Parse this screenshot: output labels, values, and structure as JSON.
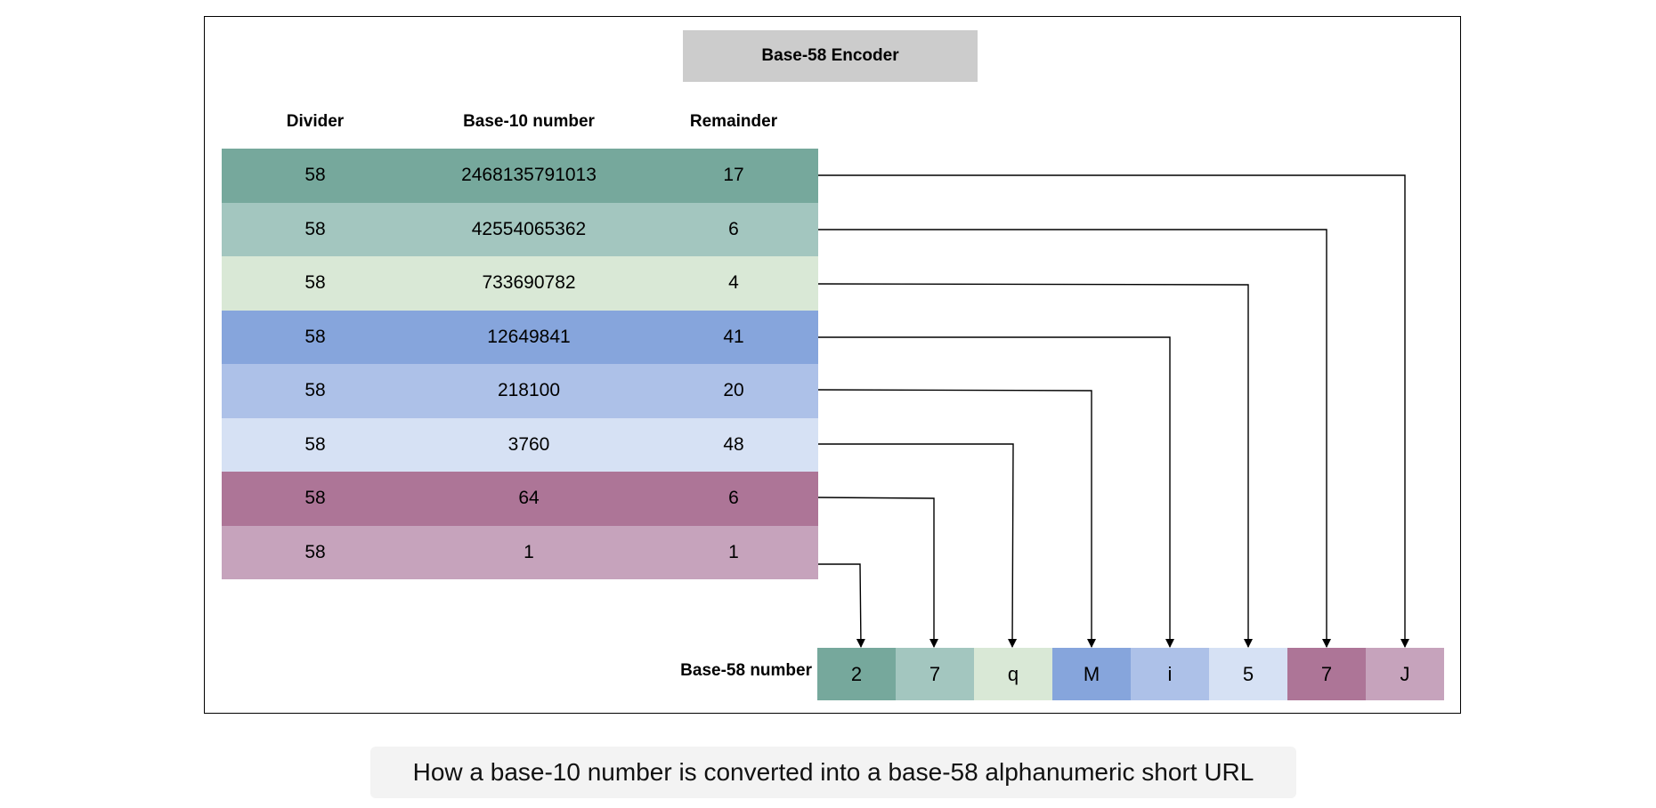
{
  "title": "Base-58 Encoder",
  "headers": {
    "divider": "Divider",
    "number": "Base-10 number",
    "remainder": "Remainder"
  },
  "rows": [
    {
      "divider": "58",
      "number": "2468135791013",
      "remainder": "17",
      "color": "#76a89c"
    },
    {
      "divider": "58",
      "number": "42554065362",
      "remainder": "6",
      "color": "#a3c6bf"
    },
    {
      "divider": "58",
      "number": "733690782",
      "remainder": "4",
      "color": "#d9e8d6"
    },
    {
      "divider": "58",
      "number": "12649841",
      "remainder": "41",
      "color": "#86a5dc"
    },
    {
      "divider": "58",
      "number": "218100",
      "remainder": "20",
      "color": "#adc1e8"
    },
    {
      "divider": "58",
      "number": "3760",
      "remainder": "48",
      "color": "#d6e1f4"
    },
    {
      "divider": "58",
      "number": "64",
      "remainder": "6",
      "color": "#ad7597"
    },
    {
      "divider": "58",
      "number": "1",
      "remainder": "1",
      "color": "#c6a3bc"
    }
  ],
  "result_label": "Base-58 number",
  "digits": [
    {
      "char": "2",
      "color": "#76a89c"
    },
    {
      "char": "7",
      "color": "#a3c6bf"
    },
    {
      "char": "q",
      "color": "#d9e8d6"
    },
    {
      "char": "M",
      "color": "#86a5dc"
    },
    {
      "char": "i",
      "color": "#adc1e8"
    },
    {
      "char": "5",
      "color": "#d6e1f4"
    },
    {
      "char": "7",
      "color": "#ad7597"
    },
    {
      "char": "J",
      "color": "#c6a3bc"
    }
  ],
  "caption": "How a base-10 number is converted into a base-58 alphanumeric short URL"
}
